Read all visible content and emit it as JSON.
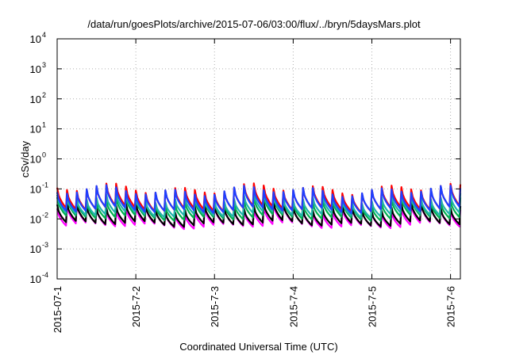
{
  "chart_data": {
    "type": "line",
    "title": "/data/run/goesPlots/archive/2015-07-06/03:00/flux/../bryn/5daysMars.plot",
    "xlabel": "Coordinated Universal Time (UTC)",
    "ylabel": "cSv/day",
    "yscale": "log",
    "ylim": [
      0.0001,
      10000
    ],
    "xlim": [
      "2015-07-01 00:00",
      "2015-07-06 03:00"
    ],
    "grid": true,
    "legend": "none",
    "y_ticks": [
      {
        "base": "10",
        "exp": "-4",
        "value": 0.0001
      },
      {
        "base": "10",
        "exp": "-3",
        "value": 0.001
      },
      {
        "base": "10",
        "exp": "-2",
        "value": 0.01
      },
      {
        "base": "10",
        "exp": "-1",
        "value": 0.1
      },
      {
        "base": "10",
        "exp": "0",
        "value": 1
      },
      {
        "base": "10",
        "exp": "1",
        "value": 10
      },
      {
        "base": "10",
        "exp": "2",
        "value": 100
      },
      {
        "base": "10",
        "exp": "3",
        "value": 1000
      },
      {
        "base": "10",
        "exp": "4",
        "value": 10000
      }
    ],
    "x_ticks": [
      {
        "label": "2015-07-1",
        "date": "2015-07-01 00:00"
      },
      {
        "label": "2015-7-2",
        "date": "2015-07-02 00:00"
      },
      {
        "label": "2015-7-3",
        "date": "2015-07-03 00:00"
      },
      {
        "label": "2015-7-4",
        "date": "2015-07-04 00:00"
      },
      {
        "label": "2015-7-5",
        "date": "2015-07-05 00:00"
      },
      {
        "label": "2015-7-6",
        "date": "2015-07-06 00:00"
      }
    ],
    "cycle_hours": 3.0,
    "series": [
      {
        "color": "#ff00ff",
        "peak": 0.022,
        "trough": 0.006
      },
      {
        "color": "#000000",
        "peak": 0.025,
        "trough": 0.007
      },
      {
        "color": "#00b050",
        "peak": 0.04,
        "trough": 0.011
      },
      {
        "color": "#20b2aa",
        "peak": 0.05,
        "trough": 0.014
      },
      {
        "color": "#ff0000",
        "peak": 0.1,
        "trough": 0.022
      },
      {
        "color": "#1f3fff",
        "peak": 0.085,
        "trough": 0.02
      }
    ]
  }
}
